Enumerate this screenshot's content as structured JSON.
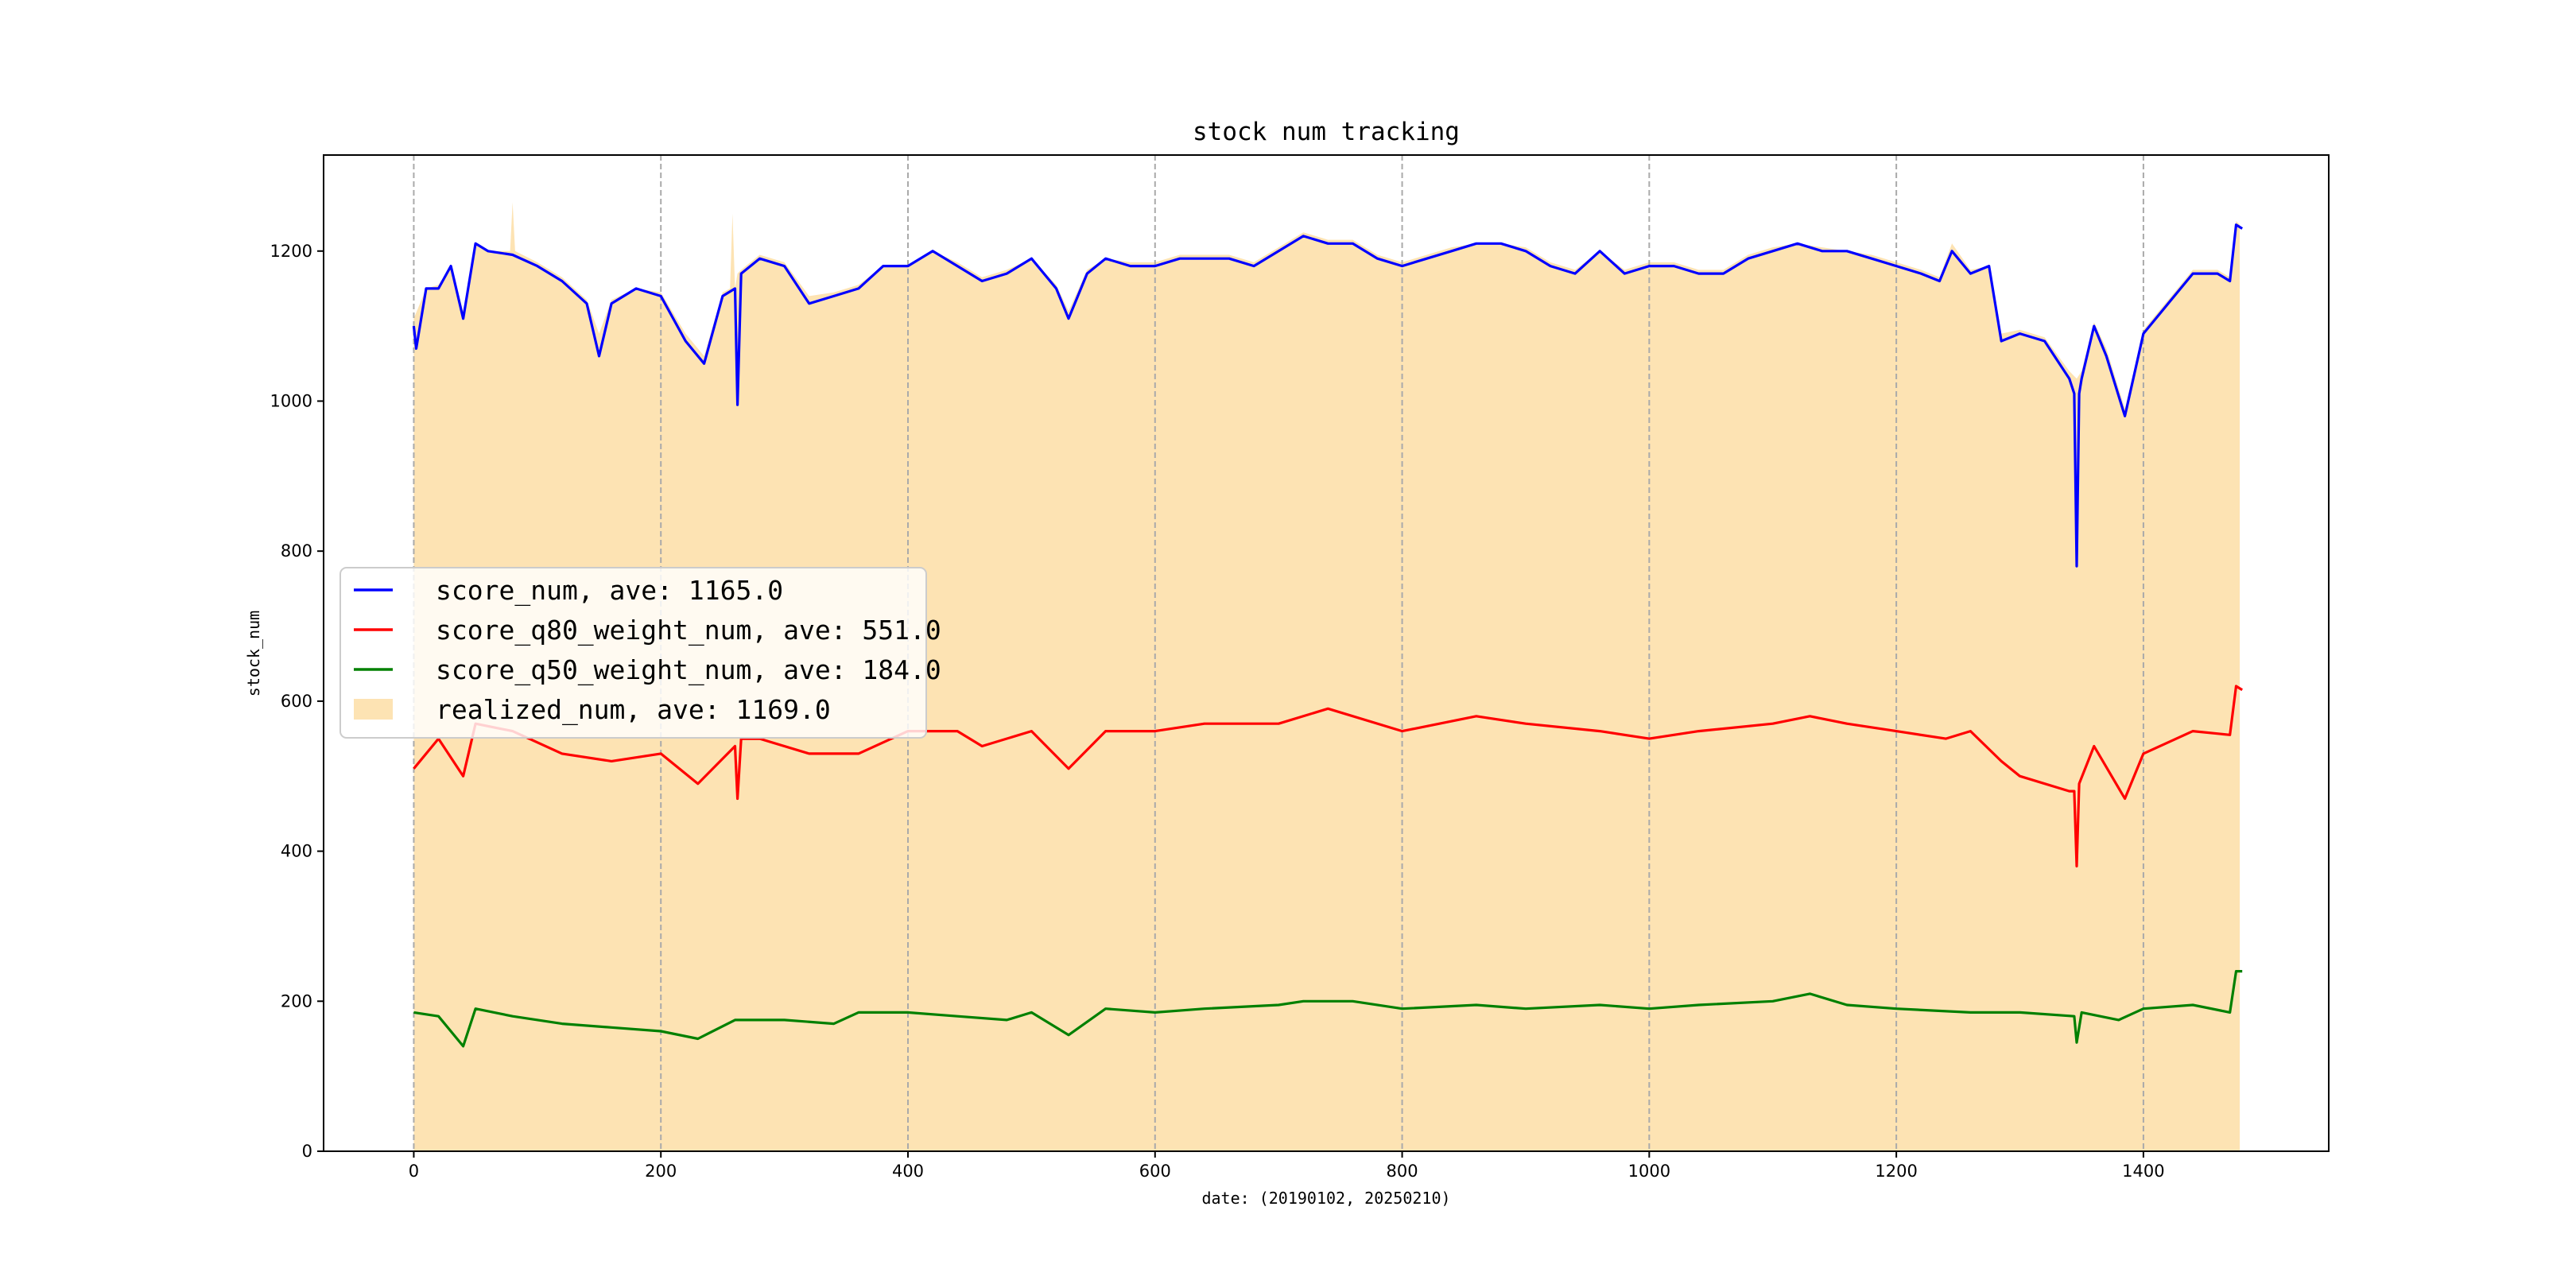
{
  "chart_data": {
    "type": "line",
    "title": "stock num tracking",
    "xlabel": "date: (20190102, 20250210)",
    "ylabel": "stock_num",
    "xlim": [
      -73,
      1550
    ],
    "ylim": [
      0,
      1328
    ],
    "xticks": [
      0,
      200,
      400,
      600,
      800,
      1000,
      1200,
      1400
    ],
    "yticks": [
      0,
      200,
      400,
      600,
      800,
      1000,
      1200
    ],
    "grid": "vertical dashed at x ticks",
    "legend_placement": "center-left",
    "colors": {
      "score_num": "#0000ff",
      "score_q80_weight_num": "#ff0000",
      "score_q50_weight_num": "#008000",
      "realized_num": "#fde3b3"
    },
    "series": [
      {
        "name": "realized_num",
        "legend": "realized_num, ave: 1169.0",
        "kind": "area",
        "x": [
          0,
          10,
          20,
          30,
          40,
          50,
          60,
          78,
          80,
          82,
          100,
          120,
          140,
          150,
          160,
          180,
          200,
          220,
          235,
          250,
          256,
          258,
          260,
          262,
          265,
          280,
          300,
          320,
          340,
          360,
          380,
          400,
          420,
          440,
          460,
          480,
          500,
          520,
          530,
          545,
          560,
          580,
          600,
          620,
          640,
          660,
          680,
          700,
          720,
          740,
          760,
          780,
          800,
          820,
          840,
          860,
          880,
          900,
          920,
          940,
          960,
          980,
          1000,
          1020,
          1040,
          1060,
          1080,
          1100,
          1120,
          1140,
          1160,
          1180,
          1200,
          1220,
          1235,
          1245,
          1260,
          1275,
          1285,
          1300,
          1320,
          1340,
          1346,
          1350,
          1360,
          1370,
          1385,
          1400,
          1420,
          1440,
          1460,
          1470,
          1475,
          1478
        ],
        "values": [
          1110,
          1150,
          1155,
          1180,
          1120,
          1210,
          1200,
          1200,
          1265,
          1200,
          1185,
          1165,
          1135,
          1090,
          1135,
          1150,
          1145,
          1090,
          1060,
          1145,
          1150,
          1250,
          1150,
          1170,
          1175,
          1195,
          1185,
          1140,
          1145,
          1155,
          1180,
          1180,
          1200,
          1185,
          1165,
          1175,
          1190,
          1155,
          1120,
          1175,
          1190,
          1185,
          1185,
          1195,
          1195,
          1195,
          1185,
          1205,
          1225,
          1215,
          1215,
          1195,
          1185,
          1195,
          1205,
          1210,
          1210,
          1205,
          1185,
          1175,
          1200,
          1175,
          1185,
          1185,
          1175,
          1175,
          1195,
          1205,
          1210,
          1205,
          1200,
          1195,
          1185,
          1175,
          1165,
          1210,
          1175,
          1180,
          1090,
          1095,
          1085,
          1040,
          1030,
          1040,
          1105,
          1070,
          990,
          1095,
          1135,
          1175,
          1175,
          1165,
          1240,
          1235
        ]
      },
      {
        "name": "score_num",
        "legend": "score_num, ave: 1165.0",
        "kind": "line",
        "x": [
          0,
          2,
          10,
          20,
          30,
          40,
          50,
          60,
          80,
          100,
          120,
          140,
          150,
          160,
          180,
          200,
          220,
          235,
          250,
          260,
          262,
          265,
          280,
          300,
          320,
          340,
          360,
          380,
          400,
          420,
          440,
          460,
          480,
          500,
          520,
          530,
          545,
          560,
          580,
          600,
          620,
          640,
          660,
          680,
          700,
          720,
          740,
          760,
          780,
          800,
          820,
          840,
          860,
          880,
          900,
          920,
          940,
          960,
          980,
          1000,
          1020,
          1040,
          1060,
          1080,
          1100,
          1120,
          1140,
          1160,
          1180,
          1200,
          1220,
          1235,
          1245,
          1260,
          1275,
          1285,
          1300,
          1320,
          1340,
          1344,
          1346,
          1348,
          1350,
          1360,
          1370,
          1385,
          1400,
          1420,
          1440,
          1460,
          1470,
          1475,
          1480
        ],
        "values": [
          1100,
          1070,
          1150,
          1150,
          1180,
          1110,
          1210,
          1200,
          1195,
          1180,
          1160,
          1130,
          1060,
          1130,
          1150,
          1140,
          1080,
          1050,
          1140,
          1150,
          995,
          1170,
          1190,
          1180,
          1130,
          1140,
          1150,
          1180,
          1180,
          1200,
          1180,
          1160,
          1170,
          1190,
          1150,
          1110,
          1170,
          1190,
          1180,
          1180,
          1190,
          1190,
          1190,
          1180,
          1200,
          1220,
          1210,
          1210,
          1190,
          1180,
          1190,
          1200,
          1210,
          1210,
          1200,
          1180,
          1170,
          1200,
          1170,
          1180,
          1180,
          1170,
          1170,
          1190,
          1200,
          1210,
          1200,
          1200,
          1190,
          1180,
          1170,
          1160,
          1200,
          1170,
          1180,
          1080,
          1090,
          1080,
          1030,
          1010,
          780,
          1010,
          1030,
          1100,
          1060,
          980,
          1090,
          1130,
          1170,
          1170,
          1160,
          1235,
          1230
        ]
      },
      {
        "name": "score_q80_weight_num",
        "legend": "score_q80_weight_num, ave: 551.0",
        "kind": "line",
        "x": [
          0,
          20,
          40,
          50,
          80,
          120,
          160,
          200,
          230,
          260,
          262,
          265,
          280,
          320,
          360,
          400,
          440,
          460,
          500,
          530,
          560,
          600,
          640,
          700,
          740,
          800,
          860,
          900,
          960,
          1000,
          1040,
          1100,
          1130,
          1160,
          1200,
          1240,
          1260,
          1285,
          1300,
          1340,
          1344,
          1346,
          1348,
          1360,
          1385,
          1400,
          1440,
          1470,
          1475,
          1480
        ],
        "values": [
          510,
          550,
          500,
          570,
          560,
          530,
          520,
          530,
          490,
          540,
          470,
          550,
          550,
          530,
          530,
          560,
          560,
          540,
          560,
          510,
          560,
          560,
          570,
          570,
          590,
          560,
          580,
          570,
          560,
          550,
          560,
          570,
          580,
          570,
          560,
          550,
          560,
          520,
          500,
          480,
          480,
          380,
          490,
          540,
          470,
          530,
          560,
          555,
          620,
          615
        ]
      },
      {
        "name": "score_q50_weight_num",
        "legend": "score_q50_weight_num, ave: 184.0",
        "kind": "line",
        "x": [
          0,
          20,
          40,
          50,
          80,
          120,
          160,
          200,
          230,
          260,
          300,
          340,
          360,
          400,
          440,
          480,
          500,
          530,
          560,
          600,
          640,
          700,
          720,
          760,
          800,
          860,
          900,
          960,
          1000,
          1040,
          1100,
          1130,
          1160,
          1200,
          1260,
          1300,
          1344,
          1346,
          1350,
          1380,
          1400,
          1440,
          1470,
          1475,
          1480
        ],
        "values": [
          185,
          180,
          140,
          190,
          180,
          170,
          165,
          160,
          150,
          175,
          175,
          170,
          185,
          185,
          180,
          175,
          185,
          155,
          190,
          185,
          190,
          195,
          200,
          200,
          190,
          195,
          190,
          195,
          190,
          195,
          200,
          210,
          195,
          190,
          185,
          185,
          180,
          145,
          185,
          175,
          190,
          195,
          185,
          240,
          240
        ]
      }
    ]
  }
}
